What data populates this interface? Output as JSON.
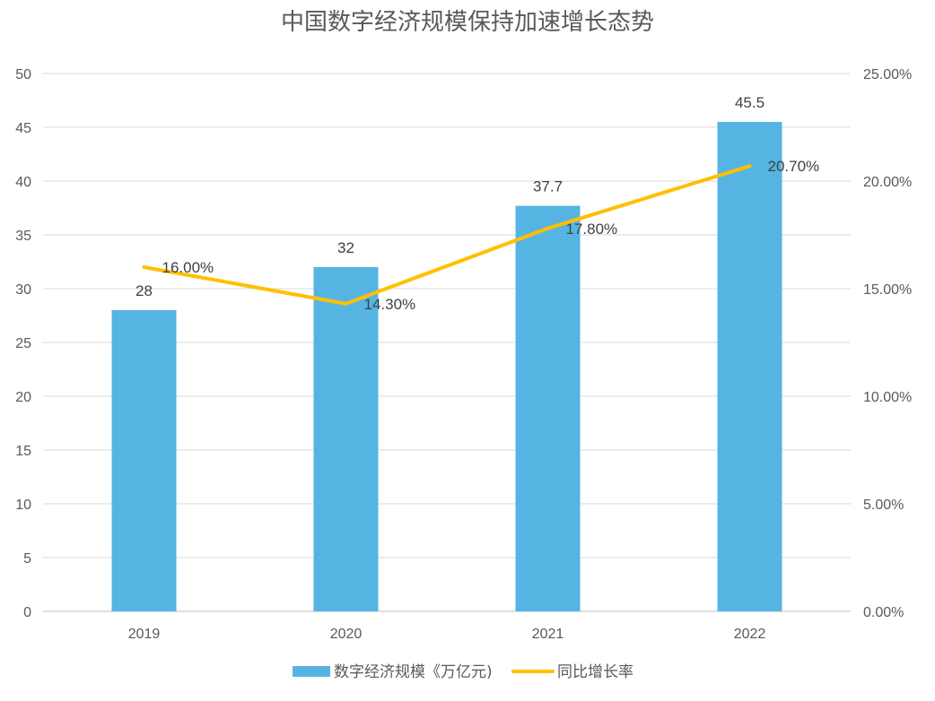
{
  "chart_data": {
    "type": "bar+line",
    "title": "中国数字经济规模保持加速增长态势",
    "categories": [
      "2019",
      "2020",
      "2021",
      "2022"
    ],
    "series": [
      {
        "name": "数字经济规模《万亿元)",
        "type": "bar",
        "axis": "left",
        "values": [
          28,
          32,
          37.7,
          45.5
        ],
        "labels": [
          "28",
          "32",
          "37.7",
          "45.5"
        ],
        "color": "#56B4E3"
      },
      {
        "name": "同比增长率",
        "type": "line",
        "axis": "right",
        "values": [
          16.0,
          14.3,
          17.8,
          20.7
        ],
        "labels": [
          "16.00%",
          "14.30%",
          "17.80%",
          "20.70%"
        ],
        "color": "#FFC000"
      }
    ],
    "y_left": {
      "range": [
        0,
        50
      ],
      "ticks": [
        "0",
        "5",
        "10",
        "15",
        "20",
        "25",
        "30",
        "35",
        "40",
        "45",
        "50"
      ]
    },
    "y_right": {
      "range": [
        0,
        25
      ],
      "ticks": [
        "0.00%",
        "5.00%",
        "10.00%",
        "15.00%",
        "20.00%",
        "25.00%"
      ]
    },
    "grid": true,
    "legend": "bottom"
  }
}
